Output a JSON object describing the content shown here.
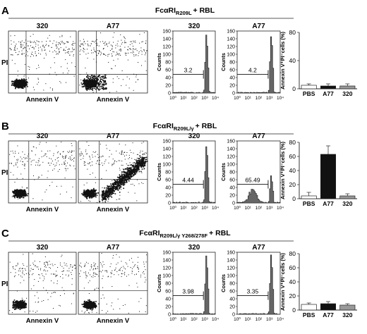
{
  "panels": [
    {
      "letter": "A",
      "title": {
        "main": "FcαRI",
        "sub": "R209L",
        "tail": "+ RBL"
      },
      "scatter": [
        {
          "label": "320"
        },
        {
          "label": "A77"
        }
      ],
      "scatter_xlabel": "Annexin V",
      "scatter_ylabel": "PI",
      "histograms": [
        {
          "label": "320",
          "gate_value": "3.2"
        },
        {
          "label": "A77",
          "gate_value": "4.2"
        }
      ],
      "hist_ylabel": "Counts",
      "hist_yticks": [
        "0",
        "20",
        "40",
        "60",
        "80",
        "100",
        "120",
        "140",
        "160"
      ],
      "hist_xticks": [
        "10⁰",
        "10¹",
        "10²",
        "10³",
        "10⁴"
      ],
      "bar_ylabel": "Annexin V⁺PI⁻cells (%)",
      "bar_yticks": [
        "0",
        "40",
        "80"
      ],
      "bar_categories": [
        "PBS",
        "A77",
        "320"
      ],
      "bar_values": [
        5,
        4,
        4
      ],
      "bar_errors": [
        2,
        3,
        3
      ],
      "bar_colors": [
        "#ffffff",
        "#111111",
        "#999999"
      ],
      "star": ""
    },
    {
      "letter": "B",
      "title": {
        "main": "FcαRI",
        "sub": "R209L/γ",
        "tail": "+ RBL"
      },
      "scatter": [
        {
          "label": "320"
        },
        {
          "label": "A77"
        }
      ],
      "scatter_xlabel": "Annexin V",
      "scatter_ylabel": "PI",
      "histograms": [
        {
          "label": "320",
          "gate_value": "4.44"
        },
        {
          "label": "A77",
          "gate_value": "65.49"
        }
      ],
      "hist_ylabel": "Counts",
      "hist_yticks": [
        "0",
        "20",
        "40",
        "60",
        "80",
        "100",
        "120",
        "140",
        "160"
      ],
      "hist_xticks": [
        "10⁰",
        "10¹",
        "10²",
        "10³",
        "10⁴"
      ],
      "bar_ylabel": "Annexin V⁺PI⁻cells (%)",
      "bar_yticks": [
        "0",
        "20",
        "40",
        "60",
        "80"
      ],
      "bar_categories": [
        "PBS",
        "A77",
        "320"
      ],
      "bar_values": [
        4,
        63,
        4
      ],
      "bar_errors": [
        5,
        12,
        3
      ],
      "bar_colors": [
        "#ffffff",
        "#111111",
        "#999999"
      ],
      "star": "*"
    },
    {
      "letter": "C",
      "title": {
        "main": "FcαRI",
        "sub": "R209L/γ Y268/278F",
        "tail": "+ RBL"
      },
      "scatter": [
        {
          "label": "320"
        },
        {
          "label": "A77"
        }
      ],
      "scatter_xlabel": "Annexin V",
      "scatter_ylabel": "PI",
      "histograms": [
        {
          "label": "320",
          "gate_value": "3.98"
        },
        {
          "label": "A77",
          "gate_value": "3.35"
        }
      ],
      "hist_ylabel": "Counts",
      "hist_yticks": [
        "0",
        "20",
        "40",
        "60",
        "80",
        "100",
        "120",
        "140",
        "160"
      ],
      "hist_xticks": [
        "10⁰",
        "10¹",
        "10²",
        "10³",
        "10⁴"
      ],
      "bar_ylabel": "Annexin V⁺PI⁻cells (%)",
      "bar_yticks": [
        "0",
        "20",
        "40",
        "60",
        "80"
      ],
      "bar_categories": [
        "PBS",
        "A77",
        "320"
      ],
      "bar_values": [
        8,
        9,
        7
      ],
      "bar_errors": [
        2,
        3,
        2
      ],
      "bar_colors": [
        "#ffffff",
        "#111111",
        "#999999"
      ],
      "star": ""
    }
  ]
}
